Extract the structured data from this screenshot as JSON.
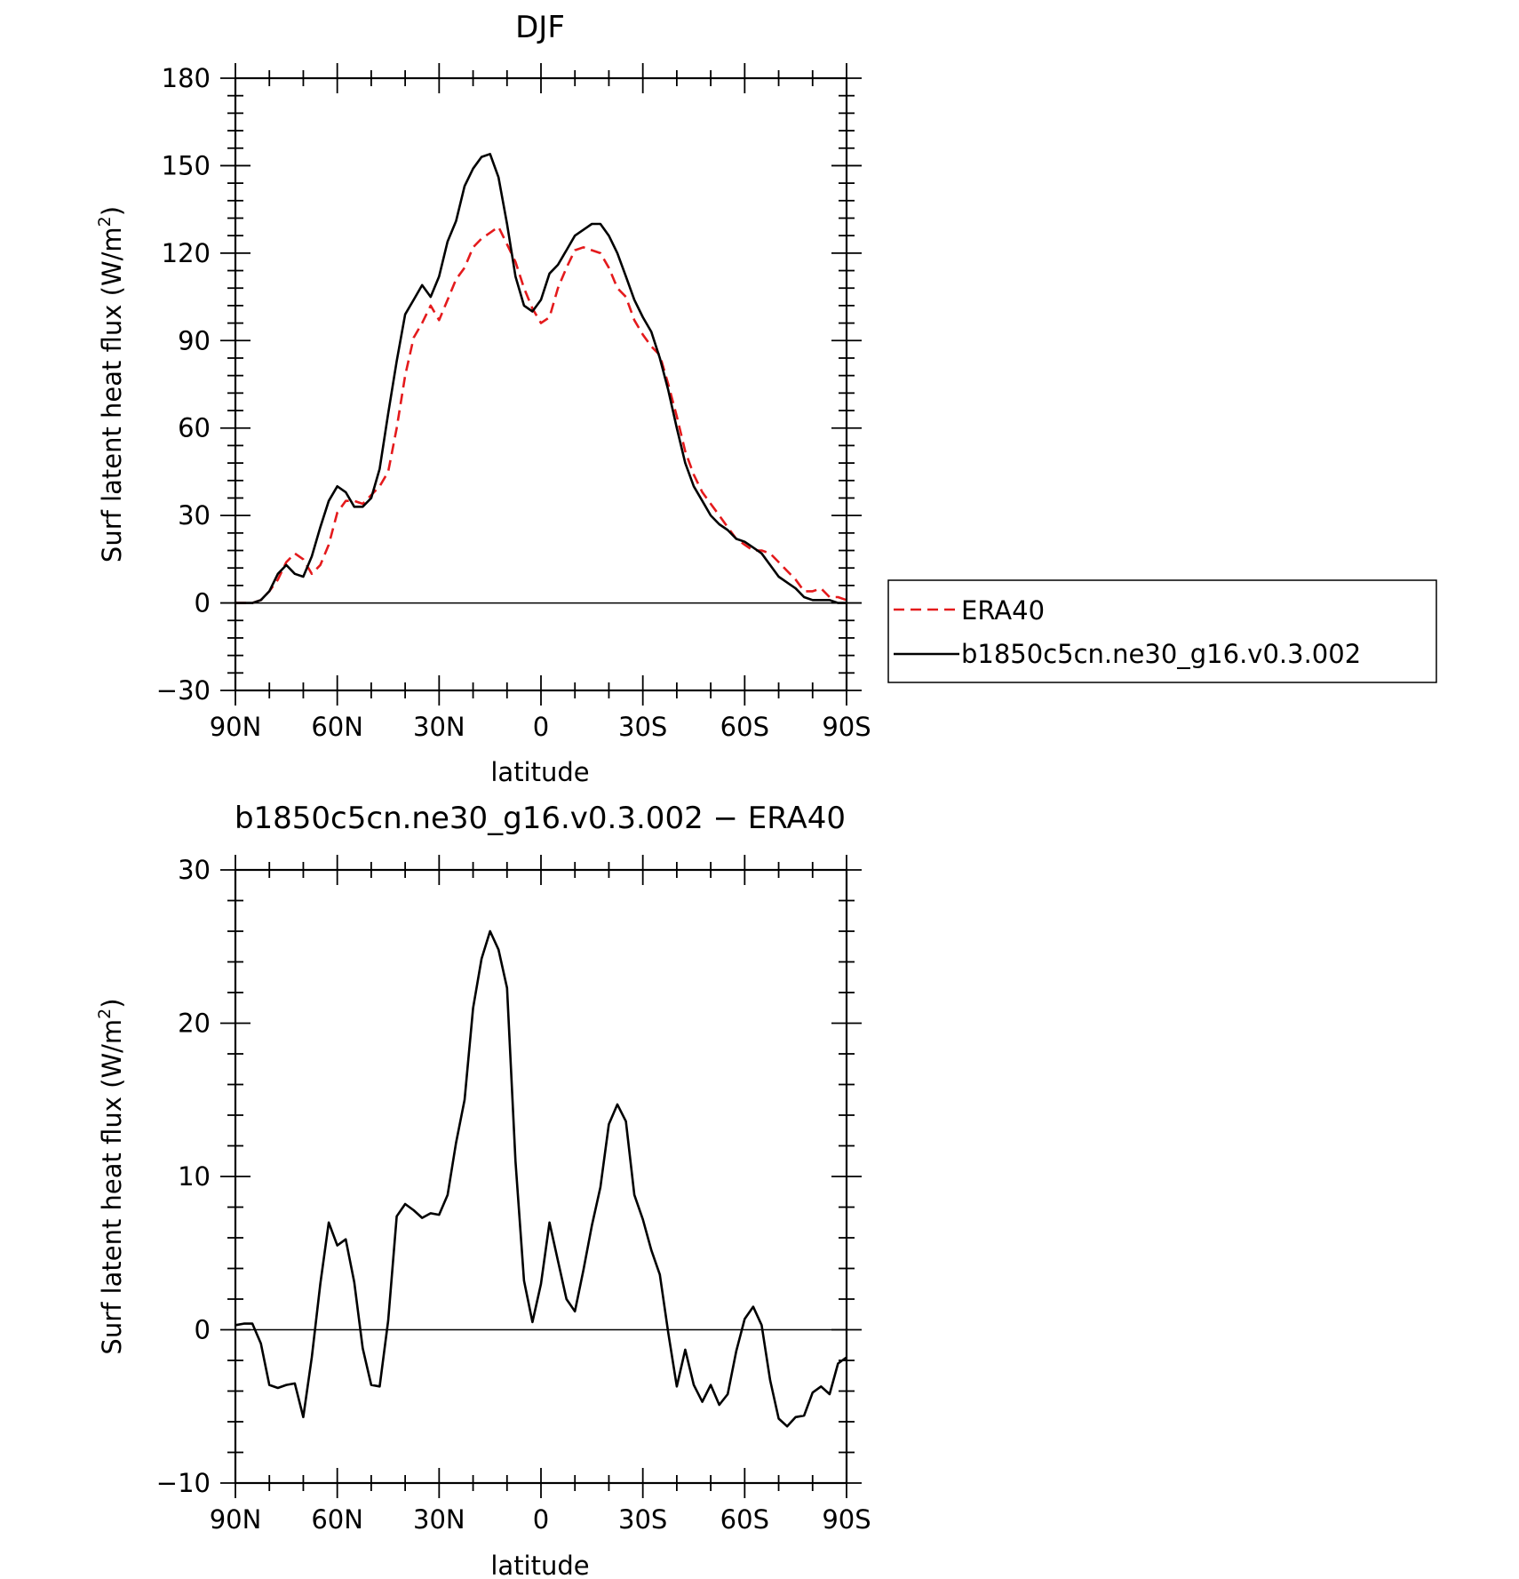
{
  "chart_data": [
    {
      "type": "line",
      "title": "DJF",
      "xlabel": "latitude",
      "ylabel": "Surf latent heat flux (W/m",
      "ylabel_sup": "2",
      "ylabel_close": ")",
      "xlim": [
        90,
        -90
      ],
      "ylim": [
        -30,
        180
      ],
      "x_ticks": [
        {
          "value": 90,
          "label": "90N"
        },
        {
          "value": 60,
          "label": "60N"
        },
        {
          "value": 30,
          "label": "30N"
        },
        {
          "value": 0,
          "label": "0"
        },
        {
          "value": -30,
          "label": "30S"
        },
        {
          "value": -60,
          "label": "60S"
        },
        {
          "value": -90,
          "label": "90S"
        }
      ],
      "y_ticks": [
        -30,
        0,
        30,
        60,
        90,
        120,
        150,
        180
      ],
      "legend": {
        "position": "right"
      },
      "series": [
        {
          "name": "ERA40",
          "color": "#e41a1c",
          "dash": true,
          "points": [
            [
              90,
              0
            ],
            [
              87.5,
              0
            ],
            [
              85,
              0
            ],
            [
              82.5,
              1
            ],
            [
              80,
              4
            ],
            [
              77.5,
              8
            ],
            [
              75,
              14
            ],
            [
              72.5,
              17
            ],
            [
              70,
              15
            ],
            [
              67.5,
              10
            ],
            [
              65,
              13
            ],
            [
              62.5,
              20
            ],
            [
              60,
              31
            ],
            [
              57.5,
              35
            ],
            [
              55,
              35
            ],
            [
              52.5,
              34
            ],
            [
              50,
              37
            ],
            [
              47.5,
              40
            ],
            [
              45,
              45
            ],
            [
              42.5,
              60
            ],
            [
              40,
              78
            ],
            [
              37.5,
              91
            ],
            [
              35,
              96
            ],
            [
              32.5,
              102
            ],
            [
              30,
              97
            ],
            [
              27.5,
              104
            ],
            [
              25,
              111
            ],
            [
              22.5,
              115
            ],
            [
              20,
              122
            ],
            [
              17.5,
              125
            ],
            [
              15,
              127
            ],
            [
              12.5,
              129
            ],
            [
              10,
              123
            ],
            [
              7.5,
              117
            ],
            [
              5,
              108
            ],
            [
              2.5,
              101
            ],
            [
              0,
              96
            ],
            [
              -2.5,
              98
            ],
            [
              -5,
              108
            ],
            [
              -7.5,
              115
            ],
            [
              -10,
              121
            ],
            [
              -12.5,
              122
            ],
            [
              -15,
              121
            ],
            [
              -17.5,
              120
            ],
            [
              -20,
              115
            ],
            [
              -22.5,
              108
            ],
            [
              -25,
              105
            ],
            [
              -27.5,
              97
            ],
            [
              -30,
              92
            ],
            [
              -32.5,
              88
            ],
            [
              -35,
              85
            ],
            [
              -37.5,
              75
            ],
            [
              -40,
              64
            ],
            [
              -42.5,
              52
            ],
            [
              -45,
              44
            ],
            [
              -47.5,
              38
            ],
            [
              -50,
              34
            ],
            [
              -52.5,
              30
            ],
            [
              -55,
              26
            ],
            [
              -57.5,
              22
            ],
            [
              -60,
              20
            ],
            [
              -62.5,
              18
            ],
            [
              -65,
              18
            ],
            [
              -67.5,
              17
            ],
            [
              -70,
              14
            ],
            [
              -72.5,
              11
            ],
            [
              -75,
              8
            ],
            [
              -77.5,
              4
            ],
            [
              -80,
              4
            ],
            [
              -82.5,
              5
            ],
            [
              -85,
              2
            ],
            [
              -87.5,
              2
            ],
            [
              -90,
              1
            ]
          ]
        },
        {
          "name": "b1850c5cn.ne30_g16.v0.3.002",
          "color": "#000000",
          "dash": false,
          "points": [
            [
              90,
              0
            ],
            [
              87.5,
              0
            ],
            [
              85,
              0
            ],
            [
              82.5,
              1
            ],
            [
              80,
              4
            ],
            [
              77.5,
              10
            ],
            [
              75,
              13
            ],
            [
              72.5,
              10
            ],
            [
              70,
              9
            ],
            [
              67.5,
              16
            ],
            [
              65,
              26
            ],
            [
              62.5,
              35
            ],
            [
              60,
              40
            ],
            [
              57.5,
              38
            ],
            [
              55,
              33
            ],
            [
              52.5,
              33
            ],
            [
              50,
              36
            ],
            [
              47.5,
              46
            ],
            [
              45,
              65
            ],
            [
              42.5,
              83
            ],
            [
              40,
              99
            ],
            [
              37.5,
              104
            ],
            [
              35,
              109
            ],
            [
              32.5,
              105
            ],
            [
              30,
              112
            ],
            [
              27.5,
              124
            ],
            [
              25,
              131
            ],
            [
              22.5,
              143
            ],
            [
              20,
              149
            ],
            [
              17.5,
              153
            ],
            [
              15,
              154
            ],
            [
              12.5,
              146
            ],
            [
              10,
              130
            ],
            [
              7.5,
              112
            ],
            [
              5,
              102
            ],
            [
              2.5,
              100
            ],
            [
              0,
              104
            ],
            [
              -2.5,
              113
            ],
            [
              -5,
              116
            ],
            [
              -7.5,
              121
            ],
            [
              -10,
              126
            ],
            [
              -12.5,
              128
            ],
            [
              -15,
              130
            ],
            [
              -17.5,
              130
            ],
            [
              -20,
              126
            ],
            [
              -22.5,
              120
            ],
            [
              -25,
              112
            ],
            [
              -27.5,
              104
            ],
            [
              -30,
              98
            ],
            [
              -32.5,
              93
            ],
            [
              -35,
              84
            ],
            [
              -37.5,
              73
            ],
            [
              -40,
              60
            ],
            [
              -42.5,
              48
            ],
            [
              -45,
              40
            ],
            [
              -47.5,
              35
            ],
            [
              -50,
              30
            ],
            [
              -52.5,
              27
            ],
            [
              -55,
              25
            ],
            [
              -57.5,
              22
            ],
            [
              -60,
              21
            ],
            [
              -62.5,
              19
            ],
            [
              -65,
              17
            ],
            [
              -67.5,
              13
            ],
            [
              -70,
              9
            ],
            [
              -72.5,
              7
            ],
            [
              -75,
              5
            ],
            [
              -77.5,
              2
            ],
            [
              -80,
              1
            ],
            [
              -82.5,
              1
            ],
            [
              -85,
              1
            ],
            [
              -87.5,
              0
            ],
            [
              -90,
              0
            ]
          ]
        }
      ]
    },
    {
      "type": "line",
      "title": "b1850c5cn.ne30_g16.v0.3.002 − ERA40",
      "xlabel": "latitude",
      "ylabel": "Surf latent heat flux (W/m",
      "ylabel_sup": "2",
      "ylabel_close": ")",
      "xlim": [
        90,
        -90
      ],
      "ylim": [
        -10,
        30
      ],
      "x_ticks": [
        {
          "value": 90,
          "label": "90N"
        },
        {
          "value": 60,
          "label": "60N"
        },
        {
          "value": 30,
          "label": "30N"
        },
        {
          "value": 0,
          "label": "0"
        },
        {
          "value": -30,
          "label": "30S"
        },
        {
          "value": -60,
          "label": "60S"
        },
        {
          "value": -90,
          "label": "90S"
        }
      ],
      "y_ticks": [
        -10,
        0,
        10,
        20,
        30
      ],
      "series": [
        {
          "name": "",
          "color": "#000000",
          "dash": false,
          "points": [
            [
              90,
              0.3
            ],
            [
              87.5,
              0.4
            ],
            [
              85,
              0.4
            ],
            [
              82.5,
              -0.9
            ],
            [
              80,
              -3.6
            ],
            [
              77.5,
              -3.8
            ],
            [
              75,
              -3.6
            ],
            [
              72.5,
              -3.5
            ],
            [
              70,
              -5.7
            ],
            [
              67.5,
              -1.8
            ],
            [
              65,
              3.0
            ],
            [
              62.5,
              7.0
            ],
            [
              60,
              5.5
            ],
            [
              57.5,
              5.9
            ],
            [
              55,
              3.1
            ],
            [
              52.5,
              -1.2
            ],
            [
              50,
              -3.6
            ],
            [
              47.5,
              -3.7
            ],
            [
              45,
              0.6
            ],
            [
              42.5,
              7.4
            ],
            [
              40,
              8.2
            ],
            [
              37.5,
              7.8
            ],
            [
              35,
              7.3
            ],
            [
              32.5,
              7.6
            ],
            [
              30,
              7.5
            ],
            [
              27.5,
              8.8
            ],
            [
              25,
              12.2
            ],
            [
              22.5,
              15.0
            ],
            [
              20,
              21.0
            ],
            [
              17.5,
              24.2
            ],
            [
              15,
              26.0
            ],
            [
              12.5,
              24.8
            ],
            [
              10,
              22.3
            ],
            [
              7.5,
              11.0
            ],
            [
              5,
              3.2
            ],
            [
              2.5,
              0.5
            ],
            [
              0,
              3.0
            ],
            [
              -2.5,
              7.0
            ],
            [
              -5,
              4.5
            ],
            [
              -7.5,
              2.0
            ],
            [
              -10,
              1.2
            ],
            [
              -12.5,
              3.9
            ],
            [
              -15,
              6.8
            ],
            [
              -17.5,
              9.3
            ],
            [
              -20,
              13.4
            ],
            [
              -22.5,
              14.7
            ],
            [
              -25,
              13.6
            ],
            [
              -27.5,
              8.8
            ],
            [
              -30,
              7.2
            ],
            [
              -32.5,
              5.2
            ],
            [
              -35,
              3.6
            ],
            [
              -37.5,
              -0.2
            ],
            [
              -40,
              -3.7
            ],
            [
              -42.5,
              -1.3
            ],
            [
              -45,
              -3.6
            ],
            [
              -47.5,
              -4.7
            ],
            [
              -50,
              -3.6
            ],
            [
              -52.5,
              -4.9
            ],
            [
              -55,
              -4.2
            ],
            [
              -57.5,
              -1.4
            ],
            [
              -60,
              0.7
            ],
            [
              -62.5,
              1.5
            ],
            [
              -65,
              0.3
            ],
            [
              -67.5,
              -3.3
            ],
            [
              -70,
              -5.8
            ],
            [
              -72.5,
              -6.3
            ],
            [
              -75,
              -5.7
            ],
            [
              -77.5,
              -5.6
            ],
            [
              -80,
              -4.1
            ],
            [
              -82.5,
              -3.7
            ],
            [
              -85,
              -4.2
            ],
            [
              -87.5,
              -2.2
            ],
            [
              -90,
              -1.8
            ]
          ]
        }
      ]
    }
  ]
}
